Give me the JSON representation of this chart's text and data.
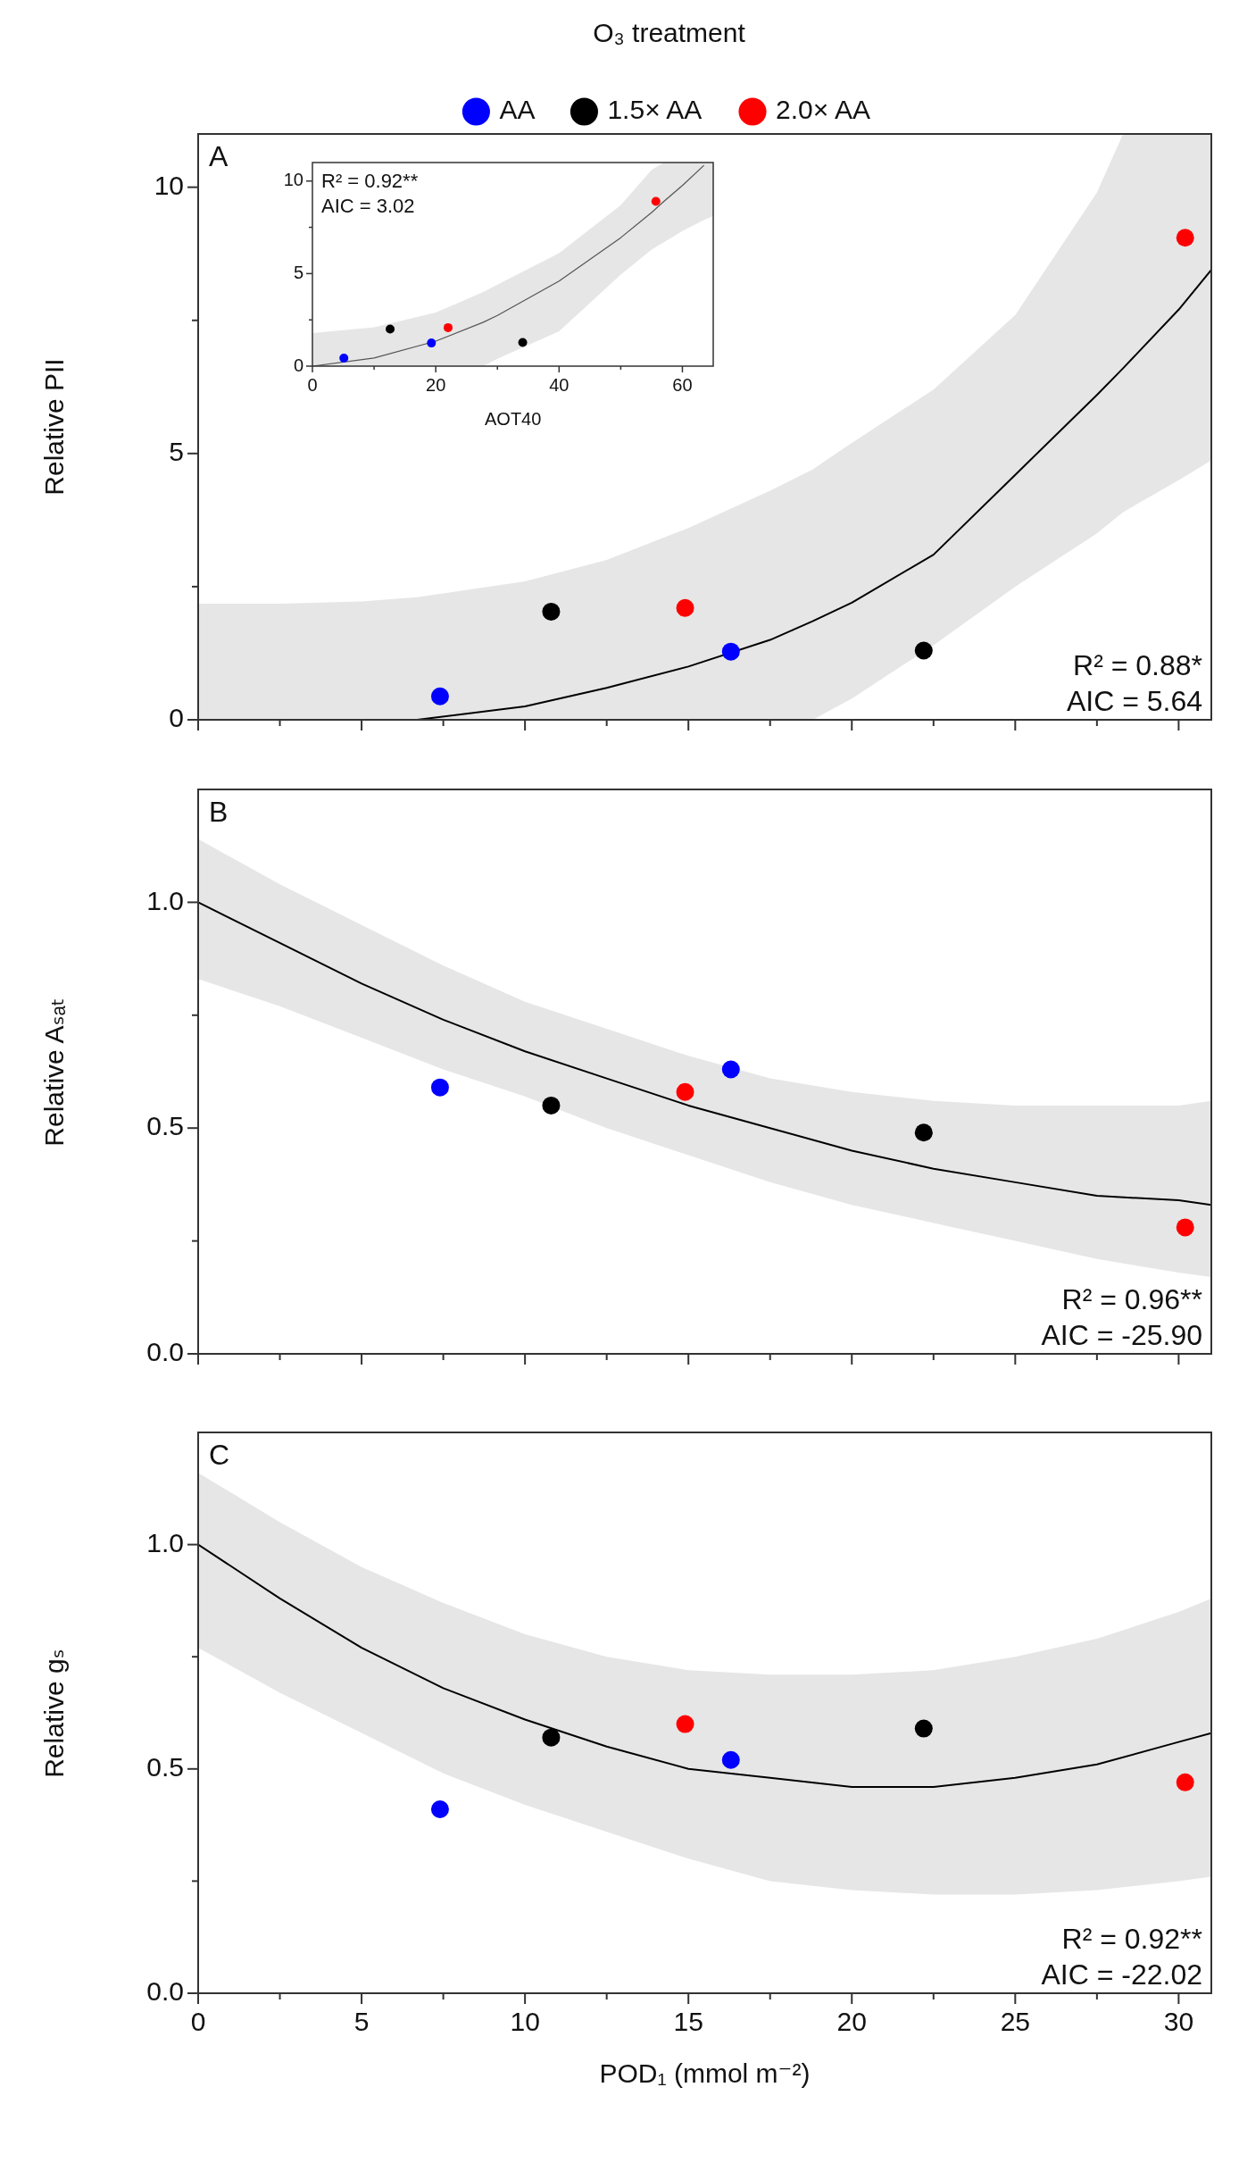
{
  "chart_data": [
    {
      "type": "scatter",
      "ylabel": "Relative PII",
      "xlim": [
        0,
        31
      ],
      "ylim": [
        0,
        11
      ],
      "xticks": [
        0,
        {
          "value": 2.5,
          "label": null
        },
        5,
        {
          "value": 7.5,
          "label": null
        },
        10,
        {
          "value": 12.5,
          "label": null
        },
        15,
        {
          "value": 17.5,
          "label": null
        },
        20,
        {
          "value": 22.5,
          "label": null
        },
        25,
        {
          "value": 27.5,
          "label": null
        },
        30
      ],
      "yticks": [
        0,
        {
          "value": 2.5,
          "label": null
        },
        5,
        {
          "value": 7.5,
          "label": null
        },
        10
      ],
      "tick_labels": "y",
      "legend": "top",
      "legend_title": "O₃ treatment",
      "marker": "circle",
      "annotations": [
        "A",
        "R² = 0.88*",
        "AIC = 5.64"
      ],
      "series": [
        {
          "name": "AA",
          "color": "#0000ff",
          "x": [
            7.4,
            16.3
          ],
          "values": [
            0.44,
            1.28
          ]
        },
        {
          "name": "1.5× AA",
          "color": "#000000",
          "x": [
            10.8,
            22.2
          ],
          "values": [
            2.03,
            1.3
          ]
        },
        {
          "name": "2.0× AA",
          "color": "#ff0000",
          "x": [
            14.9,
            30.2
          ],
          "values": [
            2.1,
            9.05
          ]
        },
        {
          "type": "line",
          "color": "#000000",
          "marker": "none",
          "x": [
            0,
            2.5,
            5,
            6.7,
            10,
            12.5,
            15,
            17.5,
            18.8,
            20,
            22.5,
            25,
            27.5,
            28.3,
            30,
            31
          ],
          "values": [
            null,
            null,
            null,
            0,
            0.25,
            0.6,
            1.0,
            1.5,
            1.85,
            2.2,
            3.1,
            4.6,
            6.1,
            6.6,
            7.7,
            8.45
          ],
          "lower": [
            0,
            0,
            0,
            0,
            0,
            0,
            0,
            0,
            0,
            0.4,
            1.4,
            2.5,
            3.5,
            3.9,
            4.5,
            4.87
          ],
          "upper": [
            2.18,
            2.18,
            2.22,
            2.3,
            2.6,
            3.0,
            3.6,
            4.3,
            4.7,
            5.2,
            6.2,
            7.6,
            9.9,
            11,
            11,
            11
          ]
        }
      ]
    },
    {
      "type": "scatter",
      "xlabel": "AOT40",
      "xlim": [
        0,
        65
      ],
      "ylim": [
        0,
        11
      ],
      "xticks": [
        0,
        {
          "value": 10,
          "label": null
        },
        20,
        {
          "value": 30,
          "label": null
        },
        40,
        {
          "value": 50,
          "label": null
        },
        60
      ],
      "yticks": [
        0,
        {
          "value": 2.5,
          "label": null
        },
        5,
        {
          "value": 7.5,
          "label": null
        },
        10
      ],
      "marker": "circle",
      "annotations": [
        "R² = 0.92**",
        "AIC = 3.02"
      ],
      "series": [
        {
          "color": "#0000ff",
          "x": [
            5.1,
            19.3
          ],
          "values": [
            0.43,
            1.25
          ]
        },
        {
          "color": "#000000",
          "x": [
            12.6,
            34.1
          ],
          "values": [
            2.0,
            1.28
          ]
        },
        {
          "color": "#ff0000",
          "x": [
            22.0,
            55.7
          ],
          "values": [
            2.08,
            8.9
          ]
        },
        {
          "type": "line",
          "color": "#555555",
          "marker": "none",
          "x": [
            0,
            10,
            20,
            27.7,
            30,
            40,
            50,
            55,
            57,
            60,
            63.5,
            65
          ],
          "values": [
            0,
            0.44,
            1.35,
            2.37,
            2.74,
            4.6,
            6.94,
            8.3,
            8.9,
            9.76,
            10.85,
            null
          ],
          "lower": [
            0,
            0,
            0,
            0,
            0.4,
            1.88,
            4.95,
            6.3,
            6.7,
            7.3,
            7.9,
            8.1
          ],
          "upper": [
            1.79,
            2.1,
            2.9,
            4.0,
            4.4,
            6.1,
            8.7,
            10.6,
            11,
            11,
            11,
            11
          ]
        }
      ]
    },
    {
      "type": "scatter",
      "ylabel": "Relative Aₛₐₜ",
      "xlim": [
        0,
        31
      ],
      "ylim": [
        0,
        1.25
      ],
      "xticks": [
        0,
        {
          "value": 2.5,
          "label": null
        },
        5,
        {
          "value": 7.5,
          "label": null
        },
        10,
        {
          "value": 12.5,
          "label": null
        },
        15,
        {
          "value": 17.5,
          "label": null
        },
        20,
        {
          "value": 22.5,
          "label": null
        },
        25,
        {
          "value": 27.5,
          "label": null
        },
        30
      ],
      "yticks": [
        {
          "value": 0,
          "label": "0.0"
        },
        {
          "value": 0.25,
          "label": null
        },
        {
          "value": 0.5,
          "label": "0.5"
        },
        {
          "value": 0.75,
          "label": null
        },
        {
          "value": 1,
          "label": "1.0"
        }
      ],
      "tick_labels": "y",
      "marker": "circle",
      "annotations": [
        "B",
        "R² = 0.96**",
        "AIC = -25.90"
      ],
      "series": [
        {
          "color": "#0000ff",
          "x": [
            7.4,
            16.3
          ],
          "values": [
            0.59,
            0.63
          ]
        },
        {
          "color": "#000000",
          "x": [
            10.8,
            22.2
          ],
          "values": [
            0.55,
            0.49
          ]
        },
        {
          "color": "#ff0000",
          "x": [
            14.9,
            30.2
          ],
          "values": [
            0.58,
            0.28
          ]
        },
        {
          "type": "line",
          "color": "#000000",
          "marker": "none",
          "x": [
            0,
            2.5,
            5,
            7.5,
            10,
            12.5,
            15,
            17.5,
            20,
            22.5,
            25,
            27.5,
            30,
            31
          ],
          "values": [
            1.0,
            0.91,
            0.82,
            0.74,
            0.67,
            0.61,
            0.55,
            0.5,
            0.45,
            0.41,
            0.38,
            0.35,
            0.34,
            0.33
          ],
          "lower": [
            0.83,
            0.77,
            0.7,
            0.63,
            0.57,
            0.5,
            0.44,
            0.38,
            0.33,
            0.29,
            0.25,
            0.21,
            0.18,
            0.17
          ],
          "upper": [
            1.14,
            1.04,
            0.95,
            0.86,
            0.78,
            0.72,
            0.66,
            0.61,
            0.58,
            0.56,
            0.55,
            0.55,
            0.55,
            0.56
          ]
        }
      ]
    },
    {
      "type": "scatter",
      "ylabel": "Relative gₛ",
      "xlabel": "POD₁ (mmol m⁻²)",
      "xlim": [
        0,
        31
      ],
      "ylim": [
        0,
        1.25
      ],
      "xticks": [
        0,
        {
          "value": 2.5,
          "label": null
        },
        5,
        {
          "value": 7.5,
          "label": null
        },
        10,
        {
          "value": 12.5,
          "label": null
        },
        15,
        {
          "value": 17.5,
          "label": null
        },
        20,
        {
          "value": 22.5,
          "label": null
        },
        25,
        {
          "value": 27.5,
          "label": null
        },
        30
      ],
      "yticks": [
        {
          "value": 0,
          "label": "0.0"
        },
        {
          "value": 0.25,
          "label": null
        },
        {
          "value": 0.5,
          "label": "0.5"
        },
        {
          "value": 0.75,
          "label": null
        },
        {
          "value": 1,
          "label": "1.0"
        }
      ],
      "marker": "circle",
      "annotations": [
        "C",
        "R² = 0.92**",
        "AIC = -22.02"
      ],
      "series": [
        {
          "color": "#0000ff",
          "x": [
            7.4,
            16.3
          ],
          "values": [
            0.41,
            0.52
          ]
        },
        {
          "color": "#000000",
          "x": [
            10.8,
            22.2
          ],
          "values": [
            0.57,
            0.59
          ]
        },
        {
          "color": "#ff0000",
          "x": [
            14.9,
            30.2
          ],
          "values": [
            0.6,
            0.47
          ]
        },
        {
          "type": "line",
          "color": "#000000",
          "marker": "none",
          "x": [
            0,
            2.5,
            5,
            7.5,
            10,
            12.5,
            15,
            17.5,
            20,
            22.5,
            25,
            27.5,
            30,
            31
          ],
          "values": [
            1.0,
            0.88,
            0.77,
            0.68,
            0.61,
            0.55,
            0.5,
            0.48,
            0.46,
            0.46,
            0.48,
            0.51,
            0.56,
            0.58
          ],
          "lower": [
            0.77,
            0.67,
            0.58,
            0.49,
            0.42,
            0.36,
            0.3,
            0.25,
            0.23,
            0.22,
            0.22,
            0.23,
            0.25,
            0.26
          ],
          "upper": [
            1.16,
            1.05,
            0.95,
            0.87,
            0.8,
            0.75,
            0.72,
            0.71,
            0.71,
            0.72,
            0.75,
            0.79,
            0.85,
            0.88
          ]
        }
      ]
    }
  ]
}
